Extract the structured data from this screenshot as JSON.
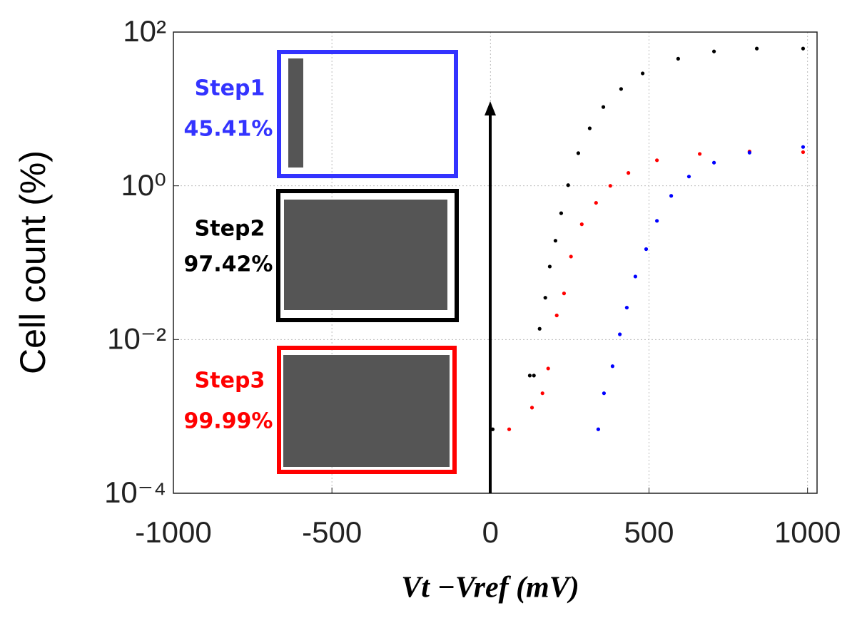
{
  "chart_data": {
    "type": "scatter",
    "ylabel": "Cell count (%)",
    "xlabel": "Vt −Vref (mV)",
    "xlim": [
      -1000,
      1030
    ],
    "xticks": [
      -1000,
      -500,
      0,
      500,
      1000
    ],
    "ylim": [
      0.0001,
      100
    ],
    "yscale": "log",
    "yticks": [
      {
        "value": 0.0001,
        "label": "10⁻⁴"
      },
      {
        "value": 0.01,
        "label": "10⁻²"
      },
      {
        "value": 1,
        "label": "10⁰"
      },
      {
        "value": 100,
        "label": "10²"
      }
    ],
    "grid": true,
    "series": [
      {
        "color": "#000000",
        "x": [
          7,
          124,
          137,
          155,
          173,
          187,
          205,
          223,
          245,
          277,
          313,
          356,
          412,
          480,
          592,
          705,
          840,
          986
        ],
        "values": [
          0.00068,
          0.0034,
          0.0034,
          0.0138,
          0.035,
          0.089,
          0.193,
          0.44,
          1.02,
          2.66,
          5.6,
          10.6,
          18.2,
          29,
          45,
          56,
          61,
          61
        ]
      },
      {
        "color": "#ff0000",
        "x": [
          59,
          131,
          164,
          182,
          209,
          232,
          254,
          288,
          333,
          378,
          435,
          525,
          660,
          817,
          986
        ],
        "values": [
          0.00068,
          0.0013,
          0.002,
          0.0042,
          0.0206,
          0.0398,
          0.12,
          0.316,
          0.6,
          1.0,
          1.47,
          2.15,
          2.6,
          2.8,
          2.74
        ]
      },
      {
        "color": "#0000ff",
        "x": [
          340,
          358,
          385,
          408,
          430,
          457,
          491,
          525,
          570,
          626,
          705,
          817,
          986
        ],
        "values": [
          0.00068,
          0.002,
          0.0045,
          0.0117,
          0.026,
          0.066,
          0.15,
          0.35,
          0.74,
          1.32,
          2.0,
          2.7,
          3.2
        ]
      }
    ],
    "annotations": [
      {
        "step": "Step1",
        "accuracy": "45.41%",
        "color": "#3333ff"
      },
      {
        "step": "Step2",
        "accuracy": "97.42%",
        "color": "#000000"
      },
      {
        "step": "Step3",
        "accuracy": "99.99%",
        "color": "#ff0000"
      }
    ]
  }
}
